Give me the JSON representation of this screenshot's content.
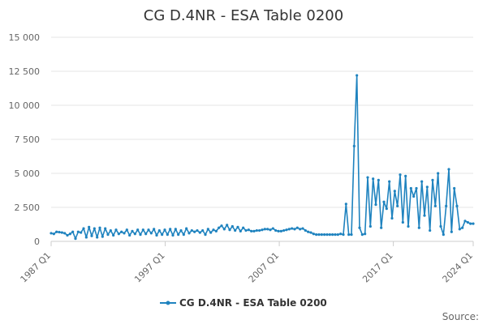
{
  "chart_data": {
    "type": "line",
    "title": "CG D.4NR - ESA Table 0200",
    "xlabel": "",
    "ylabel": "",
    "ylim": [
      0,
      15000
    ],
    "y_ticks": [
      "0",
      "2 500",
      "5 000",
      "7 500",
      "10 000",
      "12 500",
      "15 000"
    ],
    "y_tick_values": [
      0,
      2500,
      5000,
      7500,
      10000,
      12500,
      15000
    ],
    "x_start": "1987 Q1",
    "x_end": "2024 Q1",
    "x_ticks": [
      "1987 Q1",
      "1997 Q1",
      "2007 Q1",
      "2017 Q1",
      "2024 Q1"
    ],
    "grid": true,
    "legend_position": "bottom",
    "color": "#1f83bf",
    "series": [
      {
        "name": "CG D.4NR - ESA Table 0200",
        "values": [
          600,
          550,
          700,
          680,
          650,
          600,
          450,
          550,
          700,
          200,
          700,
          650,
          950,
          300,
          1050,
          400,
          950,
          300,
          1000,
          350,
          950,
          500,
          800,
          450,
          850,
          550,
          700,
          600,
          850,
          450,
          750,
          550,
          850,
          500,
          850,
          550,
          850,
          600,
          900,
          450,
          800,
          500,
          850,
          500,
          900,
          450,
          900,
          500,
          800,
          500,
          950,
          600,
          800,
          700,
          800,
          650,
          800,
          500,
          900,
          650,
          850,
          750,
          1000,
          1150,
          900,
          1200,
          850,
          1100,
          800,
          1050,
          750,
          1000,
          800,
          850,
          750,
          750,
          800,
          800,
          850,
          900,
          900,
          850,
          950,
          800,
          750,
          750,
          800,
          850,
          900,
          950,
          900,
          1000,
          900,
          950,
          800,
          700,
          650,
          550,
          500,
          500,
          500,
          500,
          500,
          500,
          500,
          500,
          500,
          550,
          500,
          2750,
          500,
          500,
          7000,
          12200,
          1000,
          500,
          550,
          4700,
          1100,
          4600,
          2700,
          4500,
          1000,
          2900,
          2400,
          4400,
          1700,
          3700,
          2600,
          4900,
          1400,
          4800,
          1100,
          3900,
          3300,
          3900,
          1000,
          4400,
          1900,
          4000,
          800,
          4500,
          2600,
          5000,
          1100,
          500,
          2600,
          5300,
          700,
          3900,
          2600,
          900,
          1000,
          1500,
          1400,
          1300,
          1300
        ]
      }
    ],
    "legend_label": "CG D.4NR - ESA Table 0200",
    "source_label": "Source:"
  }
}
